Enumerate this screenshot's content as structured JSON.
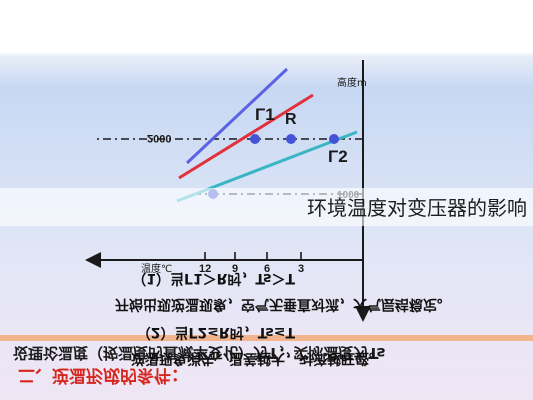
{
  "header": {
    "title": "二、逆温形成的条件：",
    "subtitle": "设理论温度（按温度的直减率变化）为T，实际温度为Ts"
  },
  "diagram": {
    "y_axis_label": "高度m",
    "x_axis_label": "温度℃",
    "height_2000": "2000",
    "height_1000": "1000",
    "x_ticks": [
      "12",
      "9",
      "6",
      "3"
    ],
    "line_labels": {
      "r1": "Γ1",
      "r": "R",
      "r2": "Γ2"
    },
    "colors": {
      "r1": "#5b62e6",
      "r": "#e0323c",
      "r2": "#38b6c4",
      "point": "#4452d8"
    }
  },
  "notes": {
    "case1_title": "（1）当Γ1＞R时，Ts＞T",
    "case1_body": "开始出现逆温现象，空气无垂直对流，大气层结稳定。",
    "case2_title": "（2）当Γ2≤R时，Ts≤T",
    "case2_body": "逆温现象消失，温差越大，对流越旺盛。"
  },
  "caption": "环境温度对变压器的影响"
}
